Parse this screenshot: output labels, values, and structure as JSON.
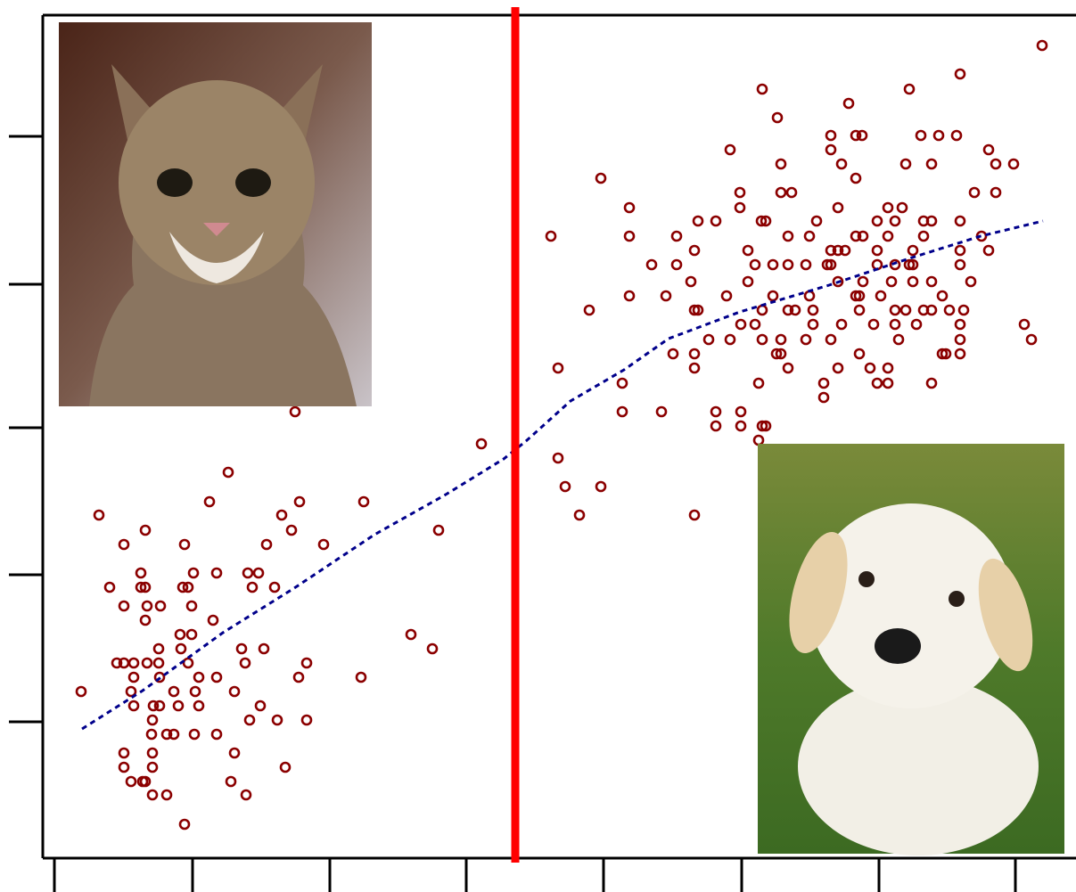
{
  "chart_data": {
    "type": "scatter",
    "xlim": [
      48,
      1207
    ],
    "ylim": [
      963,
      17
    ],
    "xticks": [
      61,
      216,
      370,
      523,
      677,
      832,
      986,
      1139
    ],
    "yticks": [
      153,
      319,
      480,
      645,
      810
    ],
    "series": [
      {
        "color": "#8b0000",
        "x": [
          111,
          256,
          235,
          336,
          408,
          163,
          139,
          207,
          299,
          316,
          327,
          363,
          492,
          540,
          331,
          158,
          243,
          217,
          278,
          290,
          123,
          158,
          163,
          205,
          211,
          283,
          308,
          139,
          165,
          180,
          215,
          163,
          239,
          202,
          215,
          178,
          203,
          271,
          296,
          461,
          485,
          131,
          139,
          150,
          165,
          178,
          211,
          275,
          344,
          91,
          150,
          179,
          223,
          243,
          335,
          405,
          147,
          195,
          219,
          263,
          150,
          172,
          179,
          200,
          223,
          292,
          171,
          280,
          311,
          344,
          170,
          187,
          195,
          218,
          243,
          139,
          171,
          263,
          139,
          171,
          320,
          147,
          160,
          163,
          259,
          171,
          187,
          276,
          207,
          1169,
          1077,
          855,
          1020,
          952,
          872,
          932,
          960,
          967,
          1033,
          1053,
          1073,
          819,
          932,
          1109,
          876,
          944,
          1016,
          1045,
          1117,
          1137,
          674,
          960,
          830,
          876,
          888,
          1093,
          1117,
          706,
          830,
          940,
          996,
          1012,
          783,
          803,
          854,
          859,
          916,
          984,
          1004,
          1036,
          1045,
          1077,
          618,
          706,
          759,
          884,
          908,
          960,
          968,
          996,
          1036,
          1101,
          779,
          839,
          932,
          940,
          948,
          984,
          1024,
          1077,
          1109,
          731,
          759,
          847,
          867,
          884,
          904,
          928,
          932,
          984,
          1004,
          1020,
          1024,
          1077,
          775,
          839,
          940,
          968,
          1000,
          1024,
          1045,
          1089,
          706,
          747,
          815,
          867,
          908,
          960,
          964,
          988,
          1057,
          661,
          779,
          783,
          855,
          884,
          892,
          912,
          964,
          1004,
          1016,
          1036,
          1045,
          1065,
          1081,
          831,
          847,
          912,
          944,
          980,
          1004,
          1028,
          1077,
          1149,
          795,
          819,
          855,
          876,
          904,
          932,
          1008,
          1077,
          1157,
          755,
          779,
          871,
          876,
          964,
          1057,
          1061,
          1077,
          626,
          779,
          884,
          940,
          976,
          996,
          698,
          851,
          924,
          984,
          996,
          1045,
          924,
          698,
          742,
          803,
          831,
          855,
          859,
          803,
          831,
          851,
          626,
          634,
          674,
          650,
          779
        ],
        "y": [
          578,
          530,
          563,
          563,
          563,
          595,
          611,
          611,
          611,
          578,
          595,
          611,
          595,
          498,
          462,
          643,
          643,
          643,
          643,
          643,
          659,
          659,
          659,
          659,
          659,
          659,
          659,
          680,
          680,
          680,
          680,
          696,
          696,
          712,
          712,
          728,
          728,
          728,
          728,
          712,
          728,
          744,
          744,
          744,
          744,
          744,
          744,
          744,
          744,
          776,
          760,
          760,
          760,
          760,
          760,
          760,
          776,
          776,
          776,
          776,
          792,
          792,
          792,
          792,
          792,
          792,
          808,
          808,
          808,
          808,
          824,
          824,
          824,
          824,
          824,
          845,
          845,
          845,
          861,
          861,
          861,
          877,
          877,
          877,
          877,
          892,
          892,
          892,
          925,
          51,
          83,
          100,
          100,
          116,
          132,
          152,
          152,
          152,
          152,
          152,
          152,
          168,
          168,
          168,
          184,
          184,
          184,
          184,
          184,
          184,
          200,
          200,
          216,
          216,
          216,
          216,
          216,
          233,
          233,
          233,
          233,
          233,
          248,
          248,
          248,
          248,
          248,
          248,
          248,
          248,
          248,
          248,
          265,
          265,
          265,
          265,
          265,
          265,
          265,
          265,
          265,
          265,
          281,
          281,
          281,
          281,
          281,
          281,
          281,
          281,
          281,
          297,
          297,
          297,
          297,
          297,
          297,
          297,
          297,
          297,
          297,
          297,
          297,
          297,
          316,
          316,
          316,
          316,
          316,
          316,
          316,
          316,
          332,
          332,
          332,
          332,
          332,
          332,
          332,
          332,
          332,
          348,
          348,
          348,
          348,
          348,
          348,
          348,
          348,
          348,
          348,
          348,
          348,
          348,
          348,
          364,
          364,
          364,
          364,
          364,
          364,
          364,
          364,
          364,
          381,
          381,
          381,
          381,
          381,
          381,
          381,
          381,
          381,
          397,
          397,
          397,
          397,
          397,
          397,
          397,
          397,
          413,
          413,
          413,
          413,
          413,
          413,
          430,
          430,
          430,
          430,
          430,
          430,
          446,
          462,
          462,
          462,
          462,
          478,
          478,
          478,
          478,
          494,
          514,
          546,
          546,
          578,
          578
        ]
      }
    ],
    "trend": {
      "color": "#00008b",
      "x": [
        92,
        160,
        250,
        330,
        420,
        500,
        565,
        590,
        640,
        700,
        750,
        830,
        930,
        1020,
        1100,
        1170
      ],
      "y": [
        818,
        775,
        710,
        660,
        600,
        555,
        515,
        495,
        450,
        415,
        380,
        350,
        320,
        290,
        265,
        248
      ]
    },
    "threshold": {
      "x": 578,
      "color": "#ff0000"
    }
  }
}
